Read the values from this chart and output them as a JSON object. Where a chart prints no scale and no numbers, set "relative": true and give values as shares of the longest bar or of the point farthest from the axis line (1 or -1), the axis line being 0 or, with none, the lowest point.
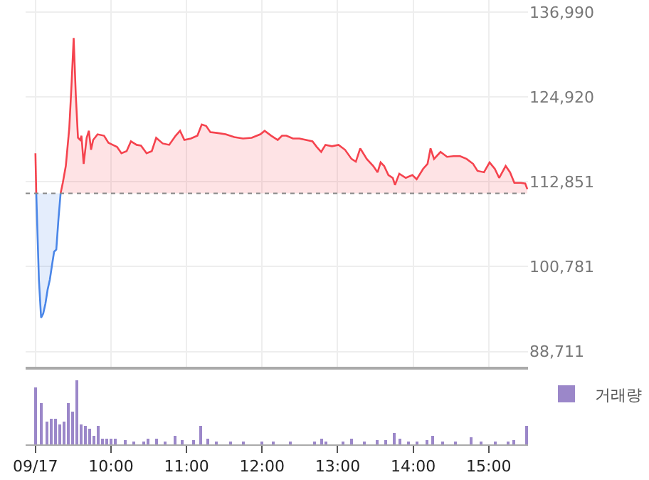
{
  "chart_data": [
    {
      "type": "area",
      "xlim": [
        8.87,
        15.52
      ],
      "ylim": [
        86500,
        138700
      ],
      "yticks": [
        {
          "value": 88711,
          "label": "88,711"
        },
        {
          "value": 100781,
          "label": "100,781"
        },
        {
          "value": 112851,
          "label": "112,851"
        },
        {
          "value": 124920,
          "label": "124,920"
        },
        {
          "value": 136990,
          "label": "136,990"
        }
      ],
      "xticks": [
        {
          "value": 9,
          "label": null
        },
        {
          "value": 10,
          "label": null
        },
        {
          "value": 11,
          "label": null
        },
        {
          "value": 12,
          "label": null
        },
        {
          "value": 13,
          "label": null
        },
        {
          "value": 14,
          "label": null
        },
        {
          "value": 15,
          "label": null
        }
      ],
      "tick_labels": "y",
      "grid": true,
      "legend": false,
      "marker": "none",
      "line_style": "solid",
      "ref_lines": [
        {
          "axis": "y",
          "value": 111200,
          "color": "#888888",
          "line_style": "dotted"
        }
      ],
      "series": [
        {
          "type": "line",
          "color": "#f5434e",
          "x": [
            9.0,
            9.011
          ],
          "values": [
            116900,
            111200
          ]
        },
        {
          "color": "#4a86e8",
          "x": [
            9.011,
            9.046,
            9.075,
            9.103,
            9.132,
            9.161,
            9.19,
            9.218,
            9.247,
            9.276,
            9.305,
            9.333
          ],
          "values": [
            111200,
            98900,
            93500,
            94100,
            95500,
            97500,
            98900,
            100900,
            102900,
            103200,
            107600,
            111200
          ]
        },
        {
          "color": "#f5434e",
          "x": [
            9.333,
            9.362,
            9.402,
            9.448,
            9.477,
            9.506,
            9.534,
            9.563,
            9.592,
            9.609,
            9.638,
            9.678,
            9.707,
            9.736,
            9.764,
            9.822,
            9.908,
            9.966,
            10.023,
            10.08,
            10.138,
            10.207,
            10.264,
            10.339,
            10.397,
            10.471,
            10.54,
            10.598,
            10.684,
            10.77,
            10.856,
            10.914,
            10.971,
            11.057,
            11.144,
            11.201,
            11.259,
            11.316,
            11.402,
            11.517,
            11.632,
            11.747,
            11.862,
            11.977,
            12.034,
            12.121,
            12.207,
            12.264,
            12.322,
            12.408,
            12.494,
            12.667,
            12.724,
            12.782,
            12.839,
            12.925,
            13.011,
            13.098,
            13.184,
            13.241,
            13.299,
            13.385,
            13.471,
            13.529,
            13.569,
            13.615,
            13.672,
            13.73,
            13.759,
            13.816,
            13.902,
            13.989,
            14.046,
            14.132,
            14.19,
            14.23,
            14.276,
            14.362,
            14.448,
            14.534,
            14.621,
            14.707,
            14.793,
            14.851,
            14.937,
            15.011,
            15.08,
            15.138,
            15.224,
            15.282,
            15.339,
            15.425,
            15.483,
            15.511
          ],
          "values": [
            111200,
            112700,
            115100,
            120500,
            126500,
            133300,
            125200,
            119100,
            118800,
            119400,
            115400,
            119100,
            120100,
            117400,
            118800,
            119600,
            119400,
            118400,
            118100,
            117800,
            116900,
            117200,
            118600,
            118100,
            118000,
            116900,
            117200,
            119100,
            118300,
            118100,
            119400,
            120100,
            118800,
            119000,
            119400,
            121000,
            120800,
            119900,
            119800,
            119600,
            119200,
            119000,
            119100,
            119600,
            120100,
            119400,
            118800,
            119400,
            119400,
            119000,
            119000,
            118600,
            117800,
            117100,
            118100,
            117900,
            118100,
            117400,
            116100,
            115700,
            117600,
            116100,
            115100,
            114200,
            115600,
            115100,
            113800,
            113400,
            112400,
            114000,
            113400,
            113800,
            113200,
            114700,
            115400,
            117600,
            116100,
            117100,
            116400,
            116500,
            116500,
            116100,
            115400,
            114400,
            114200,
            115600,
            114700,
            113400,
            115100,
            114200,
            112700,
            112700,
            112600,
            111800
          ]
        }
      ]
    },
    {
      "type": "bar",
      "relative": true,
      "xlim": [
        8.87,
        15.52
      ],
      "tick_labels": "x",
      "grid": false,
      "legend": "top right",
      "xticks": [
        {
          "value": 9,
          "label": "09/17"
        },
        {
          "value": 10,
          "label": "10:00"
        },
        {
          "value": 11,
          "label": "11:00"
        },
        {
          "value": 12,
          "label": "12:00"
        },
        {
          "value": 13,
          "label": "13:00"
        },
        {
          "value": 14,
          "label": "14:00"
        },
        {
          "value": 15,
          "label": "15:00"
        }
      ],
      "series": [
        {
          "name": "거래량",
          "color": "#9b87c9",
          "x": [
            9.0,
            9.086,
            9.144,
            9.201,
            9.259,
            9.316,
            9.374,
            9.431,
            9.489,
            9.546,
            9.603,
            9.661,
            9.718,
            9.776,
            9.833,
            9.891,
            9.948,
            10.006,
            10.063,
            10.195,
            10.31,
            10.425,
            10.483,
            10.598,
            10.713,
            10.856,
            10.943,
            11.086,
            11.19,
            11.287,
            11.402,
            11.575,
            11.747,
            12.006,
            12.149,
            12.379,
            12.695,
            12.782,
            12.839,
            13.069,
            13.184,
            13.356,
            13.529,
            13.644,
            13.747,
            13.816,
            13.931,
            14.046,
            14.19,
            14.259,
            14.391,
            14.563,
            14.776,
            14.908,
            15.08,
            15.253,
            15.339,
            15.511
          ],
          "values": [
            0.87,
            0.63,
            0.35,
            0.39,
            0.39,
            0.31,
            0.35,
            0.63,
            0.51,
            1,
            0.31,
            0.28,
            0.24,
            0.13,
            0.28,
            0.09,
            0.09,
            0.09,
            0.08,
            0.06,
            0.04,
            0.05,
            0.08,
            0.09,
            0.04,
            0.13,
            0.06,
            0.06,
            0.28,
            0.08,
            0.05,
            0.04,
            0.03,
            0.03,
            0.03,
            0.03,
            0.03,
            0.08,
            0.05,
            0.04,
            0.08,
            0.04,
            0.06,
            0.06,
            0.17,
            0.09,
            0.04,
            0.03,
            0.06,
            0.13,
            0.04,
            0.03,
            0.1,
            0.04,
            0.05,
            0.05,
            0.07,
            0.28
          ]
        }
      ]
    }
  ]
}
